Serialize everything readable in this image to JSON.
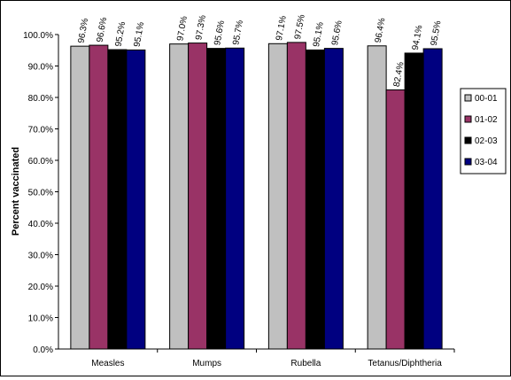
{
  "chart_data": {
    "type": "bar",
    "ylabel": "Percent vaccinated",
    "xlabel": "",
    "ylim": [
      0,
      100
    ],
    "y_ticks": [
      "0.0%",
      "10.0%",
      "20.0%",
      "30.0%",
      "40.0%",
      "50.0%",
      "60.0%",
      "70.0%",
      "80.0%",
      "90.0%",
      "100.0%"
    ],
    "categories": [
      "Measles",
      "Mumps",
      "Rubella",
      "Tetanus/Diphtheria"
    ],
    "series": [
      {
        "name": "00-01",
        "color": "#c0c0c0",
        "values": [
          96.3,
          97.0,
          97.1,
          96.4
        ],
        "labels": [
          "96.3%",
          "97.0%",
          "97.1%",
          "96.4%"
        ]
      },
      {
        "name": "01-02",
        "color": "#993366",
        "values": [
          96.6,
          97.3,
          97.5,
          82.4
        ],
        "labels": [
          "96.6%",
          "97.3%",
          "97.5%",
          "82.4%"
        ]
      },
      {
        "name": "02-03",
        "color": "#000000",
        "values": [
          95.2,
          95.6,
          95.1,
          94.1
        ],
        "labels": [
          "95.2%",
          "95.6%",
          "95.1%",
          "94.1%"
        ]
      },
      {
        "name": "03-04",
        "color": "#000080",
        "values": [
          95.1,
          95.7,
          95.6,
          95.5
        ],
        "labels": [
          "95.1%",
          "95.7%",
          "95.6%",
          "95.5%"
        ]
      }
    ],
    "grid": false,
    "legend_position": "right"
  }
}
